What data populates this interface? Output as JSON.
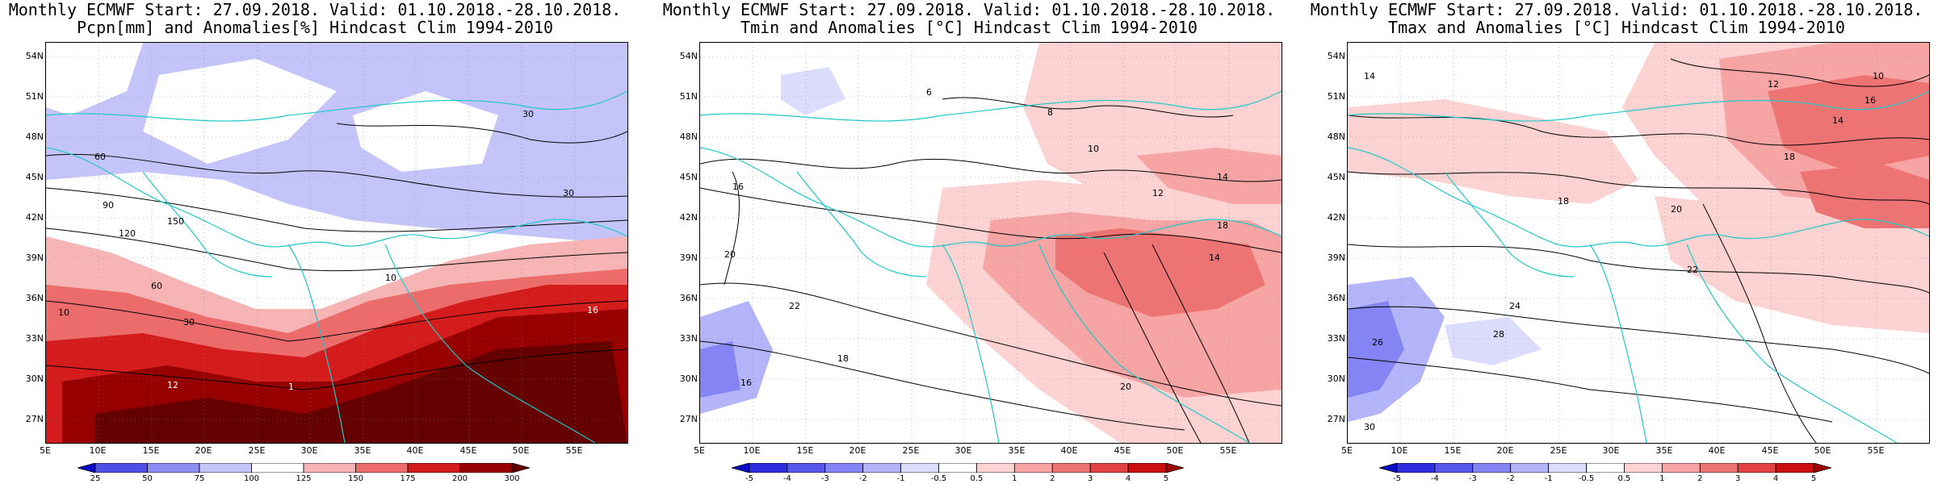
{
  "panels": [
    {
      "title_line1": "Monthly ECMWF Start: 27.09.2018. Valid: 01.10.2018.-28.10.2018.",
      "title_line2": "Pcpn[mm] and Anomalies[%] Hindcast Clim 1994-2010",
      "colorbar": {
        "labels": [
          "25",
          "50",
          "75",
          "100",
          "125",
          "150",
          "175",
          "200",
          "300"
        ],
        "colors": [
          "#0a0ac8",
          "#4f4fe6",
          "#8d8df2",
          "#c4c4fa",
          "#ffffff",
          "#f6b4b4",
          "#ec6c6c",
          "#d41c1c",
          "#960000",
          "#640000"
        ]
      },
      "contour_labels": [
        "30",
        "30",
        "60",
        "90",
        "120",
        "150",
        "60",
        "30",
        "10",
        "10",
        "16",
        "12",
        "1"
      ]
    },
    {
      "title_line1": "Monthly ECMWF Start: 27.09.2018. Valid: 01.10.2018.-28.10.2018.",
      "title_line2": "Tmin and Anomalies [°C] Hindcast Clim 1994-2010",
      "colorbar": {
        "labels": [
          "-5",
          "-4",
          "-3",
          "-2",
          "-1",
          "-0.5",
          "0.5",
          "1",
          "2",
          "3",
          "4",
          "5"
        ],
        "colors": [
          "#0a0ac8",
          "#2e2ee0",
          "#5858ec",
          "#8484f4",
          "#b4b4fa",
          "#dcdcfe",
          "#ffffff",
          "#fcd2d2",
          "#f6a4a4",
          "#ee7474",
          "#e24242",
          "#cc1010",
          "#a00000"
        ]
      },
      "contour_labels": [
        "6",
        "8",
        "10",
        "12",
        "14",
        "16",
        "18",
        "20",
        "22",
        "20",
        "18",
        "16",
        "14"
      ]
    },
    {
      "title_line1": "Monthly ECMWF Start: 27.09.2018. Valid: 01.10.2018.-28.10.2018.",
      "title_line2": "Tmax and Anomalies [°C] Hindcast Clim 1994-2010",
      "colorbar": {
        "labels": [
          "-5",
          "-4",
          "-3",
          "-2",
          "-1",
          "-0.5",
          "0.5",
          "1",
          "2",
          "3",
          "4",
          "5"
        ],
        "colors": [
          "#0a0ac8",
          "#2e2ee0",
          "#5858ec",
          "#8484f4",
          "#b4b4fa",
          "#dcdcfe",
          "#ffffff",
          "#fcd2d2",
          "#f6a4a4",
          "#ee7474",
          "#e24242",
          "#cc1010",
          "#a00000"
        ]
      },
      "contour_labels": [
        "10",
        "12",
        "14",
        "16",
        "18",
        "20",
        "22",
        "24",
        "26",
        "28",
        "30",
        "14",
        "18"
      ]
    }
  ],
  "lat_labels": [
    "54N",
    "51N",
    "48N",
    "45N",
    "42N",
    "39N",
    "36N",
    "33N",
    "30N",
    "27N"
  ],
  "lon_labels": [
    "5E",
    "10E",
    "15E",
    "20E",
    "25E",
    "30E",
    "35E",
    "40E",
    "45E",
    "50E",
    "55E"
  ]
}
